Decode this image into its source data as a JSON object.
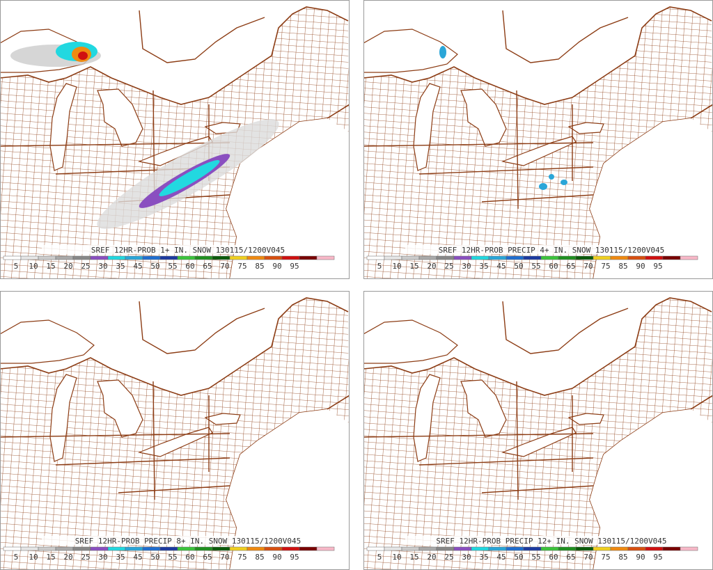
{
  "panels": [
    {
      "title": "SREF 12HR-PROB 1+ IN. SNOW 130115/1200V045"
    },
    {
      "title": "SREF 12HR-PROB PRECIP 4+ IN. SNOW 130115/1200V045"
    },
    {
      "title": "SREF 12HR-PROB PRECIP 8+ IN. SNOW 130115/1200V045"
    },
    {
      "title": "SREF 12HR-PROB PRECIP 12+ IN. SNOW 130115/1200V045"
    }
  ],
  "legend": {
    "labels": [
      5,
      10,
      15,
      20,
      25,
      30,
      35,
      45,
      50,
      55,
      60,
      65,
      70,
      75,
      85,
      90,
      95
    ],
    "colors": [
      "#ffffff",
      "#e6e6e6",
      "#cccccc",
      "#aaaaaa",
      "#888888",
      "#8a4fc0",
      "#22d8e0",
      "#2aa6d8",
      "#1f6ed0",
      "#1c3aa0",
      "#3cc43c",
      "#209020",
      "#0a5a0a",
      "#f0d020",
      "#f08a10",
      "#d85010",
      "#d01010",
      "#7a0000",
      "#f8b8c8"
    ]
  }
}
